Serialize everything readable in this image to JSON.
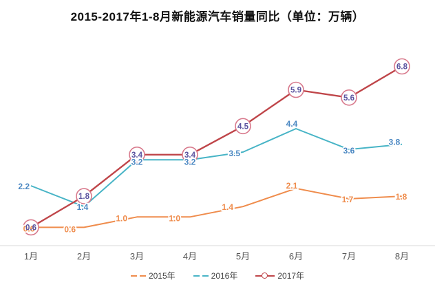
{
  "title": "2015-2017年1-8月新能源汽车销量同比（单位：万辆）",
  "chart_data": {
    "type": "line",
    "title": "2015-2017年1-8月新能源汽车销量同比（单位：万辆）",
    "categories": [
      "1月",
      "2月",
      "3月",
      "4月",
      "5月",
      "6月",
      "7月",
      "8月"
    ],
    "series": [
      {
        "name": "2015年",
        "values": [
          0.6,
          0.6,
          1.0,
          1.0,
          1.4,
          2.1,
          1.7,
          1.8
        ],
        "line_color": "#ef8c4c",
        "label_color": "#ef8c4c",
        "marker": "none"
      },
      {
        "name": "2016年",
        "values": [
          2.2,
          1.4,
          3.2,
          3.2,
          3.5,
          4.4,
          3.6,
          3.8
        ],
        "line_color": "#47b4c6",
        "label_color": "#4a87c2",
        "marker": "none"
      },
      {
        "name": "2017年",
        "values": [
          0.6,
          1.8,
          3.4,
          3.4,
          4.5,
          5.9,
          5.6,
          6.8
        ],
        "line_color": "#bf4549",
        "label_color": "#5b54a0",
        "marker": "circle",
        "marker_stroke": "#d8798c",
        "marker_fill": "#ffffff"
      }
    ],
    "xlabel": "",
    "ylabel": "",
    "unit": "万辆",
    "ylim": [
      0,
      7.5
    ],
    "grid": false,
    "legend_position": "bottom",
    "axis_line_color": "#e5e5e5",
    "month_label_color": "#555555"
  }
}
